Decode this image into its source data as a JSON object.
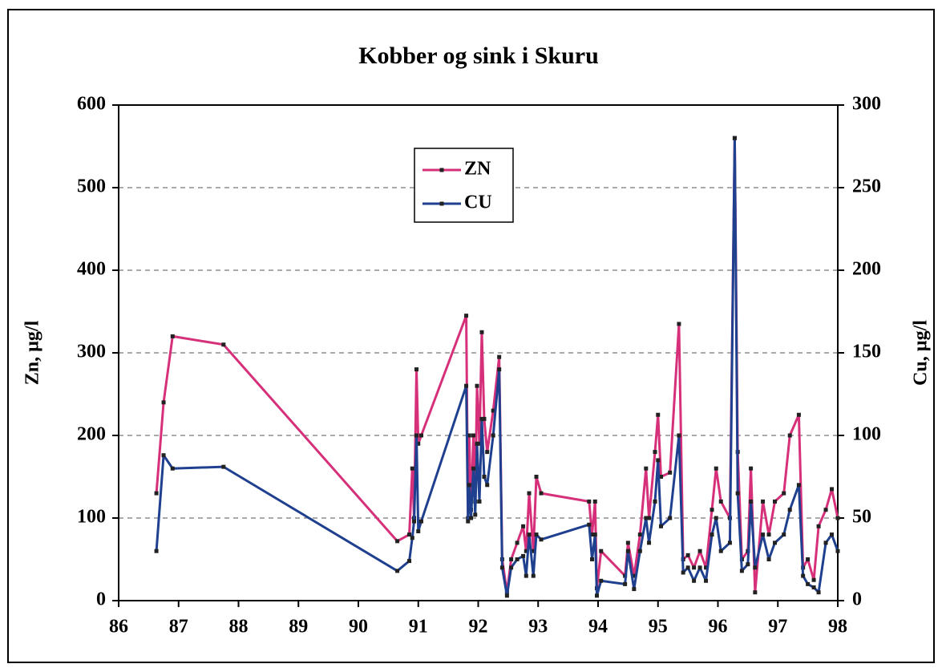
{
  "chart_data": {
    "type": "line",
    "title": "Kobber og sink i Skuru",
    "y_label": "Zn, µg/l",
    "y2_label": "Cu, µg/l",
    "x": [
      86.63,
      86.75,
      86.9,
      87.75,
      90.65,
      90.85,
      90.9,
      90.93,
      90.97,
      91.0,
      91.05,
      91.8,
      91.83,
      91.85,
      91.88,
      91.92,
      91.95,
      91.98,
      92.02,
      92.06,
      92.1,
      92.15,
      92.25,
      92.35,
      92.4,
      92.48,
      92.55,
      92.65,
      92.75,
      92.8,
      92.85,
      92.92,
      92.97,
      93.05,
      93.85,
      93.9,
      93.95,
      93.98,
      94.05,
      94.45,
      94.5,
      94.6,
      94.7,
      94.8,
      94.85,
      94.95,
      95.0,
      95.05,
      95.2,
      95.35,
      95.42,
      95.5,
      95.6,
      95.7,
      95.8,
      95.9,
      95.97,
      96.05,
      96.2,
      96.28,
      96.33,
      96.4,
      96.5,
      96.55,
      96.62,
      96.75,
      96.85,
      96.95,
      97.1,
      97.2,
      97.35,
      97.42,
      97.5,
      97.6,
      97.68,
      97.8,
      97.9,
      98.0
    ],
    "series": [
      {
        "name": "ZN",
        "color": "#d6307a",
        "axis": "y",
        "values": [
          130,
          240,
          320,
          310,
          72,
          80,
          160,
          100,
          280,
          190,
          200,
          345,
          100,
          200,
          110,
          200,
          120,
          260,
          190,
          325,
          220,
          180,
          230,
          295,
          50,
          10,
          50,
          70,
          90,
          60,
          130,
          60,
          150,
          130,
          120,
          80,
          120,
          15,
          60,
          30,
          70,
          30,
          80,
          160,
          100,
          180,
          225,
          150,
          155,
          335,
          50,
          55,
          40,
          60,
          40,
          110,
          160,
          120,
          100,
          560,
          180,
          50,
          60,
          160,
          10,
          120,
          80,
          120,
          130,
          200,
          225,
          40,
          50,
          25,
          90,
          110,
          135,
          100
        ]
      },
      {
        "name": "CU",
        "color": "#1f3f8f",
        "axis": "y2",
        "values": [
          30,
          88,
          80,
          81,
          18,
          24,
          38,
          48,
          100,
          42,
          48,
          130,
          48,
          70,
          50,
          80,
          52,
          95,
          60,
          110,
          75,
          70,
          100,
          140,
          20,
          3,
          20,
          25,
          27,
          15,
          40,
          15,
          40,
          37,
          46,
          25,
          40,
          3,
          12,
          10,
          30,
          7,
          30,
          50,
          35,
          60,
          85,
          45,
          50,
          100,
          17,
          20,
          12,
          20,
          12,
          40,
          50,
          30,
          35,
          280,
          65,
          18,
          22,
          60,
          20,
          40,
          25,
          35,
          40,
          55,
          70,
          15,
          10,
          8,
          5,
          35,
          40,
          30
        ]
      }
    ],
    "xlim": [
      86,
      98
    ],
    "xticks": [
      86,
      87,
      88,
      89,
      90,
      91,
      92,
      93,
      94,
      95,
      96,
      97,
      98
    ],
    "ylim": [
      0,
      600
    ],
    "yticks": [
      0,
      100,
      200,
      300,
      400,
      500,
      600
    ],
    "y2lim": [
      0,
      300
    ],
    "y2ticks": [
      0,
      50,
      100,
      150,
      200,
      250,
      300
    ],
    "grid": true,
    "legend": "upper center"
  }
}
